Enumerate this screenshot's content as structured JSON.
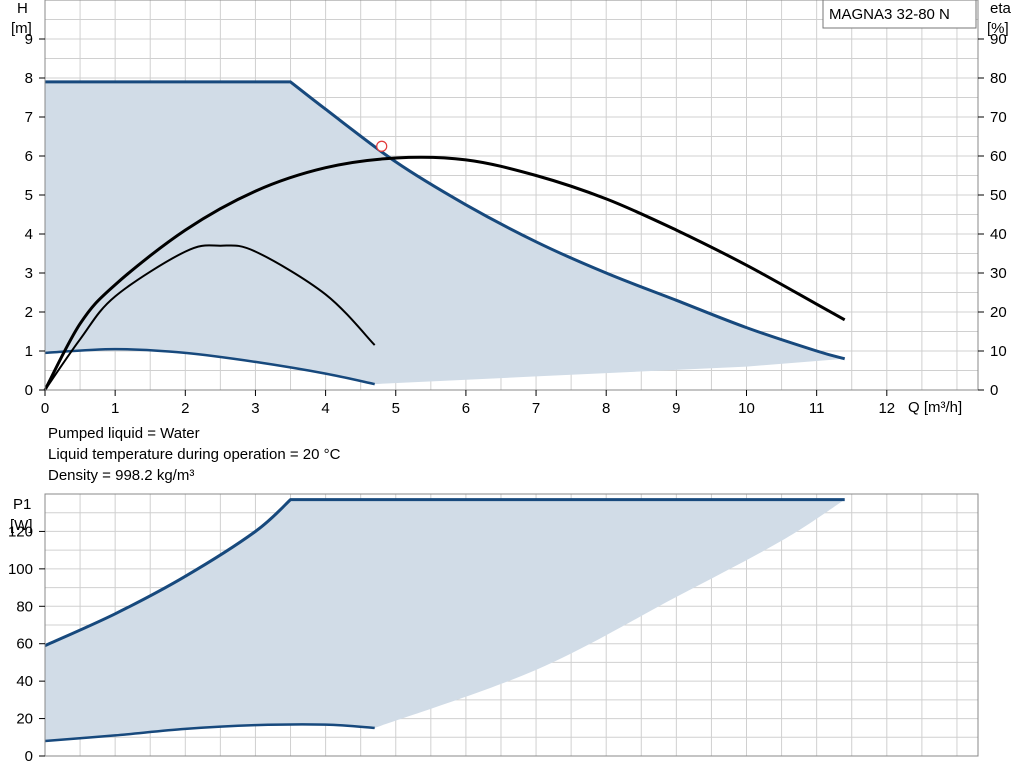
{
  "notes": {
    "liquid": "Pumped liquid = Water",
    "temperature": "Liquid temperature during operation = 20 °C",
    "density": "Density = 998.2 kg/m³"
  },
  "colors": {
    "envelope_fill": "#d1dce7",
    "envelope_line": "#17497d",
    "efficiency_line": "#000000",
    "grid": "#d0d0d0",
    "duty_point": "#e23a3a"
  },
  "chart_data": [
    {
      "type": "line",
      "title": "MAGNA3 32-80 N",
      "xlabel": "Q [m³/h]",
      "ylabel": "H\n[m]",
      "y2label": "eta\n[%]",
      "xlim": [
        0,
        13.3
      ],
      "ylim": [
        0,
        10
      ],
      "y2lim": [
        0,
        100
      ],
      "x_ticks": [
        0,
        1,
        2,
        3,
        4,
        5,
        6,
        7,
        8,
        9,
        10,
        11,
        12
      ],
      "y_ticks": [
        0,
        1,
        2,
        3,
        4,
        5,
        6,
        7,
        8,
        9
      ],
      "y2_ticks": [
        0,
        10,
        20,
        30,
        40,
        50,
        60,
        70,
        80,
        90
      ],
      "grid": true,
      "series": [
        {
          "role": "max-curve",
          "axis": "y",
          "x": [
            0,
            3.5,
            4.0,
            5.0,
            6.0,
            7.0,
            8.0,
            9.0,
            10.0,
            11.0,
            11.4
          ],
          "y": [
            7.9,
            7.9,
            7.2,
            5.85,
            4.75,
            3.8,
            3.0,
            2.3,
            1.6,
            1.0,
            0.8
          ]
        },
        {
          "role": "min-curve",
          "axis": "y",
          "x": [
            0,
            1.0,
            2.0,
            3.0,
            4.0,
            4.7
          ],
          "y": [
            0.95,
            1.05,
            0.95,
            0.72,
            0.42,
            0.15
          ]
        },
        {
          "role": "envelope-bottom",
          "axis": "y",
          "x": [
            4.7,
            7.0,
            10.0,
            11.4
          ],
          "y": [
            0.15,
            0.35,
            0.6,
            0.8
          ]
        },
        {
          "role": "efficiency-max",
          "axis": "y2",
          "x": [
            0,
            0.5,
            1.0,
            2.0,
            3.0,
            4.0,
            5.0,
            6.0,
            7.0,
            8.0,
            9.0,
            10.0,
            11.0,
            11.4
          ],
          "y": [
            0,
            17,
            27,
            41,
            51,
            57,
            59.5,
            59,
            55,
            49,
            41,
            32,
            22,
            18
          ]
        },
        {
          "role": "efficiency-min",
          "axis": "y2",
          "x": [
            0,
            0.5,
            1.0,
            2.0,
            2.5,
            3.0,
            4.0,
            4.7
          ],
          "y": [
            0,
            13,
            24,
            35.5,
            37,
            35.5,
            24.5,
            11.5
          ]
        }
      ],
      "duty_point": {
        "x": 4.8,
        "y": 6.25
      }
    },
    {
      "type": "line",
      "ylabel": "P1\n[W]",
      "xlim": [
        0,
        13.3
      ],
      "ylim": [
        0,
        140
      ],
      "y_ticks": [
        0,
        20,
        40,
        60,
        80,
        100,
        120
      ],
      "grid": true,
      "series": [
        {
          "role": "max-power",
          "axis": "y",
          "x": [
            0,
            1.0,
            2.0,
            3.0,
            3.5,
            11.4
          ],
          "y": [
            59,
            76,
            96,
            120,
            137,
            137
          ]
        },
        {
          "role": "min-power",
          "axis": "y",
          "x": [
            0,
            1.0,
            2.0,
            3.0,
            4.0,
            4.7
          ],
          "y": [
            8,
            11,
            14.5,
            16.5,
            16.8,
            15
          ]
        },
        {
          "role": "envelope-bottom",
          "axis": "y",
          "x": [
            4.7,
            7.0,
            9.0,
            10.5,
            11.4
          ],
          "y": [
            15,
            46,
            85,
            115,
            137
          ]
        }
      ]
    }
  ]
}
